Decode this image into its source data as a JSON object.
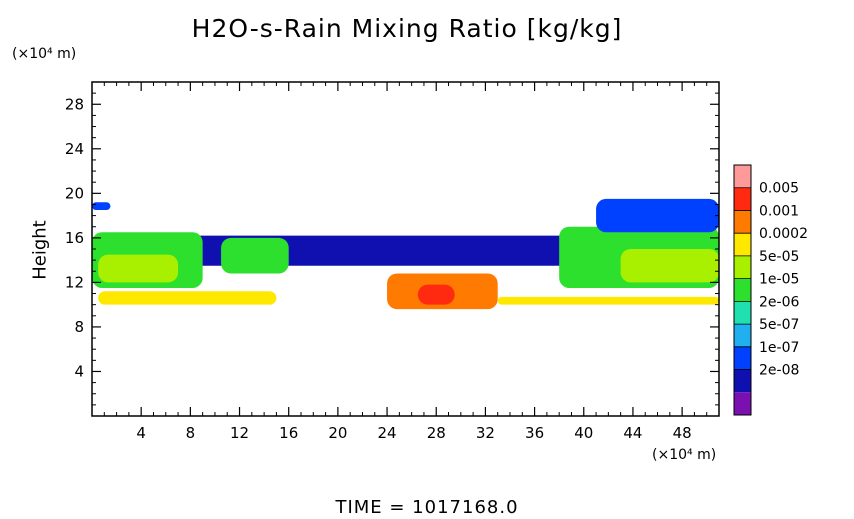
{
  "chart_data": {
    "type": "heatmap",
    "title": "H2O-s-Rain Mixing Ratio [kg/kg]",
    "ylabel": "Height",
    "y_unit": "(×10⁴ m)",
    "x_unit": "(×10⁴ m)",
    "time_label": "TIME = 1017168.0",
    "xlim": [
      0,
      51
    ],
    "ylim": [
      0,
      30
    ],
    "x_ticks": [
      4,
      8,
      12,
      16,
      20,
      24,
      28,
      32,
      36,
      40,
      44,
      48
    ],
    "y_ticks": [
      4,
      8,
      12,
      16,
      20,
      24,
      28
    ],
    "legend": {
      "labels": [
        "0.005",
        "0.001",
        "0.0002",
        "5e-05",
        "1e-05",
        "2e-06",
        "5e-07",
        "1e-07",
        "2e-08"
      ],
      "colors": [
        "#ff9a9a",
        "#ff2a10",
        "#ff7a00",
        "#ffe800",
        "#a8f000",
        "#2ee02e",
        "#20e0b0",
        "#20b0f0",
        "#0040ff",
        "#1010b0",
        "#7a10b0"
      ]
    },
    "regions": [
      {
        "name": "upper-layer-band",
        "x": [
          0,
          51
        ],
        "y": [
          13.5,
          16.2
        ],
        "level": 9
      },
      {
        "name": "left-thick-cloud",
        "x": [
          0,
          9
        ],
        "y": [
          11.5,
          16.5
        ],
        "level": 5
      },
      {
        "name": "left-core",
        "x": [
          0.5,
          7
        ],
        "y": [
          12.0,
          14.5
        ],
        "level": 4
      },
      {
        "name": "left-mid-cloud",
        "x": [
          10.5,
          16
        ],
        "y": [
          12.8,
          16.0
        ],
        "level": 5
      },
      {
        "name": "right-thick-cloud",
        "x": [
          38,
          51
        ],
        "y": [
          11.5,
          17.0
        ],
        "level": 5
      },
      {
        "name": "right-core",
        "x": [
          43,
          51
        ],
        "y": [
          12.0,
          15.0
        ],
        "level": 4
      },
      {
        "name": "right-top-layer",
        "x": [
          41,
          51
        ],
        "y": [
          16.5,
          19.5
        ],
        "level": 8
      },
      {
        "name": "left-top-fragment",
        "x": [
          0,
          1.5
        ],
        "y": [
          18.5,
          19.2
        ],
        "level": 8
      },
      {
        "name": "central-convective-cell",
        "x": [
          24,
          33
        ],
        "y": [
          9.6,
          12.8
        ],
        "level": 2
      },
      {
        "name": "central-core",
        "x": [
          26.5,
          29.5
        ],
        "y": [
          10.0,
          11.8
        ],
        "level": 1
      },
      {
        "name": "right-low-band",
        "x": [
          33,
          51
        ],
        "y": [
          10.0,
          10.7
        ],
        "level": 3
      },
      {
        "name": "left-low-blobs",
        "x": [
          0.5,
          15
        ],
        "y": [
          10.0,
          11.2
        ],
        "level": 3
      }
    ]
  }
}
